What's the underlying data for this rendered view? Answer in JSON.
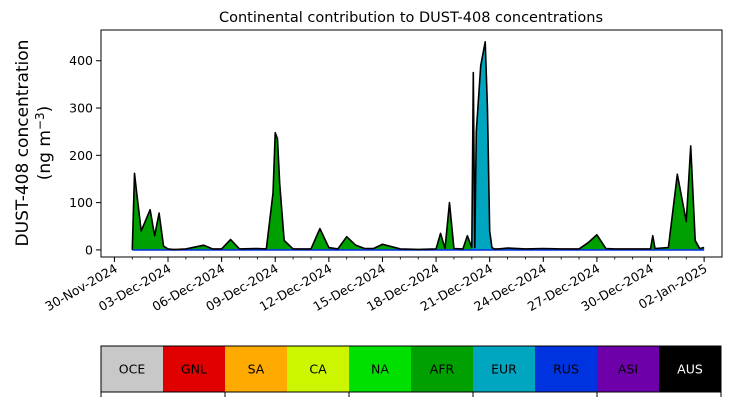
{
  "chart_data": {
    "type": "area",
    "title": "Continental contribution to DUST-408 concentrations",
    "ylabel_line1": "DUST-408 concentration",
    "ylabel_line2_prefix": "(ng m",
    "ylabel_line2_sup": "−3",
    "ylabel_line2_suffix": ")",
    "xlabel": "",
    "x_range": [
      "2024-11-29T06:00",
      "2025-01-03T00:00"
    ],
    "ylim": [
      -15,
      465
    ],
    "yticks": [
      0,
      100,
      200,
      300,
      400
    ],
    "xticks": [
      {
        "date": "2024-11-30",
        "label": "30-Nov-2024"
      },
      {
        "date": "2024-12-03",
        "label": "03-Dec-2024"
      },
      {
        "date": "2024-12-06",
        "label": "06-Dec-2024"
      },
      {
        "date": "2024-12-09",
        "label": "09-Dec-2024"
      },
      {
        "date": "2024-12-12",
        "label": "12-Dec-2024"
      },
      {
        "date": "2024-12-15",
        "label": "15-Dec-2024"
      },
      {
        "date": "2024-12-18",
        "label": "18-Dec-2024"
      },
      {
        "date": "2024-12-21",
        "label": "21-Dec-2024"
      },
      {
        "date": "2024-12-24",
        "label": "24-Dec-2024"
      },
      {
        "date": "2024-12-27",
        "label": "27-Dec-2024"
      },
      {
        "date": "2024-12-30",
        "label": "30-Dec-2024"
      },
      {
        "date": "2025-01-02",
        "label": "02-Jan-2025"
      }
    ],
    "total_series": {
      "x": [
        "2024-12-01T00:00",
        "2024-12-01T03:00",
        "2024-12-01T06:00",
        "2024-12-01T12:00",
        "2024-12-02T00:00",
        "2024-12-02T06:00",
        "2024-12-02T12:00",
        "2024-12-02T18:00",
        "2024-12-03T00:00",
        "2024-12-03T06:00",
        "2024-12-03T12:00",
        "2024-12-04T00:00",
        "2024-12-05T00:00",
        "2024-12-05T12:00",
        "2024-12-06T00:00",
        "2024-12-06T12:00",
        "2024-12-07T00:00",
        "2024-12-08T00:00",
        "2024-12-08T12:00",
        "2024-12-08T21:00",
        "2024-12-09T00:00",
        "2024-12-09T03:00",
        "2024-12-09T06:00",
        "2024-12-09T12:00",
        "2024-12-10T00:00",
        "2024-12-11T00:00",
        "2024-12-11T12:00",
        "2024-12-12T00:00",
        "2024-12-12T12:00",
        "2024-12-13T00:00",
        "2024-12-13T12:00",
        "2024-12-14T00:00",
        "2024-12-14T12:00",
        "2024-12-15T00:00",
        "2024-12-16T00:00",
        "2024-12-17T00:00",
        "2024-12-18T00:00",
        "2024-12-18T06:00",
        "2024-12-18T12:00",
        "2024-12-18T18:00",
        "2024-12-19T00:00",
        "2024-12-19T12:00",
        "2024-12-19T18:00",
        "2024-12-20T00:00",
        "2024-12-20T02:00",
        "2024-12-20T04:00",
        "2024-12-20T06:00",
        "2024-12-20T12:00",
        "2024-12-20T18:00",
        "2024-12-20T21:00",
        "2024-12-21T00:00",
        "2024-12-21T03:00",
        "2024-12-21T06:00",
        "2024-12-21T12:00",
        "2024-12-22T00:00",
        "2024-12-23T00:00",
        "2024-12-24T00:00",
        "2024-12-25T00:00",
        "2024-12-26T00:00",
        "2024-12-26T12:00",
        "2024-12-27T00:00",
        "2024-12-27T12:00",
        "2024-12-28T00:00",
        "2024-12-29T00:00",
        "2024-12-30T00:00",
        "2024-12-30T03:00",
        "2024-12-30T06:00",
        "2024-12-31T00:00",
        "2024-12-31T12:00",
        "2025-01-01T00:00",
        "2025-01-01T06:00",
        "2025-01-01T09:00",
        "2025-01-01T12:00",
        "2025-01-01T18:00",
        "2025-01-02T00:00"
      ],
      "y": [
        0,
        162,
        120,
        40,
        85,
        30,
        78,
        8,
        2,
        1,
        1,
        2,
        10,
        2,
        2,
        22,
        2,
        3,
        2,
        120,
        248,
        235,
        140,
        20,
        2,
        2,
        45,
        5,
        2,
        28,
        10,
        3,
        3,
        12,
        2,
        1,
        2,
        35,
        3,
        100,
        3,
        2,
        30,
        5,
        375,
        5,
        250,
        390,
        440,
        300,
        40,
        5,
        2,
        2,
        4,
        2,
        3,
        2,
        2,
        15,
        32,
        3,
        2,
        2,
        2,
        30,
        3,
        5,
        160,
        60,
        220,
        120,
        20,
        3,
        5
      ]
    },
    "fill_segments": [
      {
        "from": "2024-12-01T00:00",
        "to": "2024-12-18T00:00",
        "region": "AFR"
      },
      {
        "from": "2024-12-18T00:00",
        "to": "2024-12-20T00:00",
        "region": "AFR"
      },
      {
        "from": "2024-12-20T00:00",
        "to": "2024-12-21T06:00",
        "region": "EUR"
      },
      {
        "from": "2024-12-21T06:00",
        "to": "2025-01-02T00:00",
        "region": "AFR"
      }
    ],
    "legend": [
      {
        "label": "OCE",
        "color": "#c8c8c8",
        "text_color": "#000000"
      },
      {
        "label": "GNL",
        "color": "#e00000",
        "text_color": "#000000"
      },
      {
        "label": "SA",
        "color": "#ffaa00",
        "text_color": "#000000"
      },
      {
        "label": "CA",
        "color": "#ccf500",
        "text_color": "#000000"
      },
      {
        "label": "NA",
        "color": "#00e000",
        "text_color": "#000000"
      },
      {
        "label": "AFR",
        "color": "#00a000",
        "text_color": "#000000"
      },
      {
        "label": "EUR",
        "color": "#00a5c0",
        "text_color": "#000000"
      },
      {
        "label": "RUS",
        "color": "#0033e0",
        "text_color": "#000000"
      },
      {
        "label": "ASI",
        "color": "#6e00aa",
        "text_color": "#000000"
      },
      {
        "label": "AUS",
        "color": "#000000",
        "text_color": "#ffffff"
      }
    ],
    "legend_placement": "bottom",
    "grid": false
  }
}
